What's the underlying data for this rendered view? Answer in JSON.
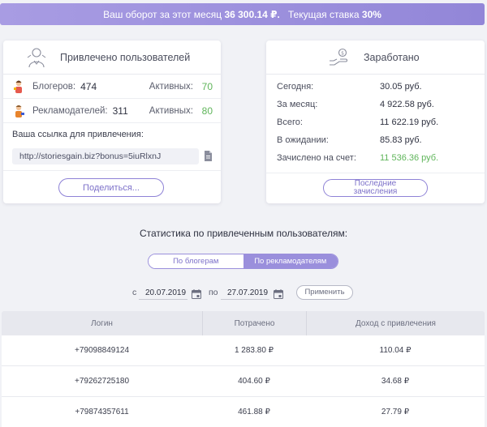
{
  "banner": {
    "turnover_label": "Ваш оборот за этот месяц",
    "turnover_value": "36 300.14 ₽.",
    "rate_label": "Текущая ставка",
    "rate_value": "30%"
  },
  "referrals": {
    "title": "Привлечено пользователей",
    "bloggers": {
      "label": "Блогеров:",
      "count": "474",
      "active_label": "Активных:",
      "active": "70"
    },
    "advertisers": {
      "label": "Рекламодателей:",
      "count": "311",
      "active_label": "Активных:",
      "active": "80"
    },
    "link_label": "Ваша ссылка для привлечения:",
    "link_value": "http://storiesgain.biz?bonus=5iuRlxnJ",
    "share_button": "Поделиться..."
  },
  "earnings": {
    "title": "Заработано",
    "rows": [
      {
        "label": "Сегодня:",
        "value": "30.05 руб."
      },
      {
        "label": "За месяц:",
        "value": "4 922.58 руб."
      },
      {
        "label": "Всего:",
        "value": "11 622.19 руб."
      },
      {
        "label": "В ожидании:",
        "value": "85.83 руб."
      },
      {
        "label": "Зачислено на счет:",
        "value": "11 536.36 руб."
      }
    ],
    "payouts_button": "Последние зачисления"
  },
  "stats": {
    "title": "Статистика по привлеченным пользователям:",
    "toggle": {
      "bloggers": "По блогерам",
      "advertisers": "По рекламодателям",
      "selected": "advertisers"
    },
    "from_label": "с",
    "from_date": "20.07.2019",
    "to_label": "по",
    "to_date": "27.07.2019",
    "apply_button": "Применить"
  },
  "table": {
    "headers": [
      "Логин",
      "Потрачено",
      "Доход с привлечения"
    ],
    "rows": [
      [
        "+79098849124",
        "1 283.80 ₽",
        "110.04 ₽"
      ],
      [
        "+79262725180",
        "404.60 ₽",
        "34.68 ₽"
      ],
      [
        "+79874357611",
        "461.88 ₽",
        "27.79 ₽"
      ]
    ]
  },
  "colors": {
    "accent": "#9a8fdc",
    "positive": "#5fb55a",
    "background": "#f1f2f6"
  }
}
